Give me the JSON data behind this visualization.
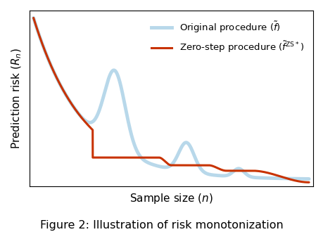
{
  "title": "Figure 2: Illustration of risk monotonization",
  "xlabel": "Sample size $(n)$",
  "ylabel": "Prediction risk $(R_n)$",
  "original_color": "#b8d8ea",
  "zero_step_color": "#c83200",
  "background_color": "#ffffff",
  "orig_linewidth": 3.5,
  "zs_linewidth": 2.2
}
